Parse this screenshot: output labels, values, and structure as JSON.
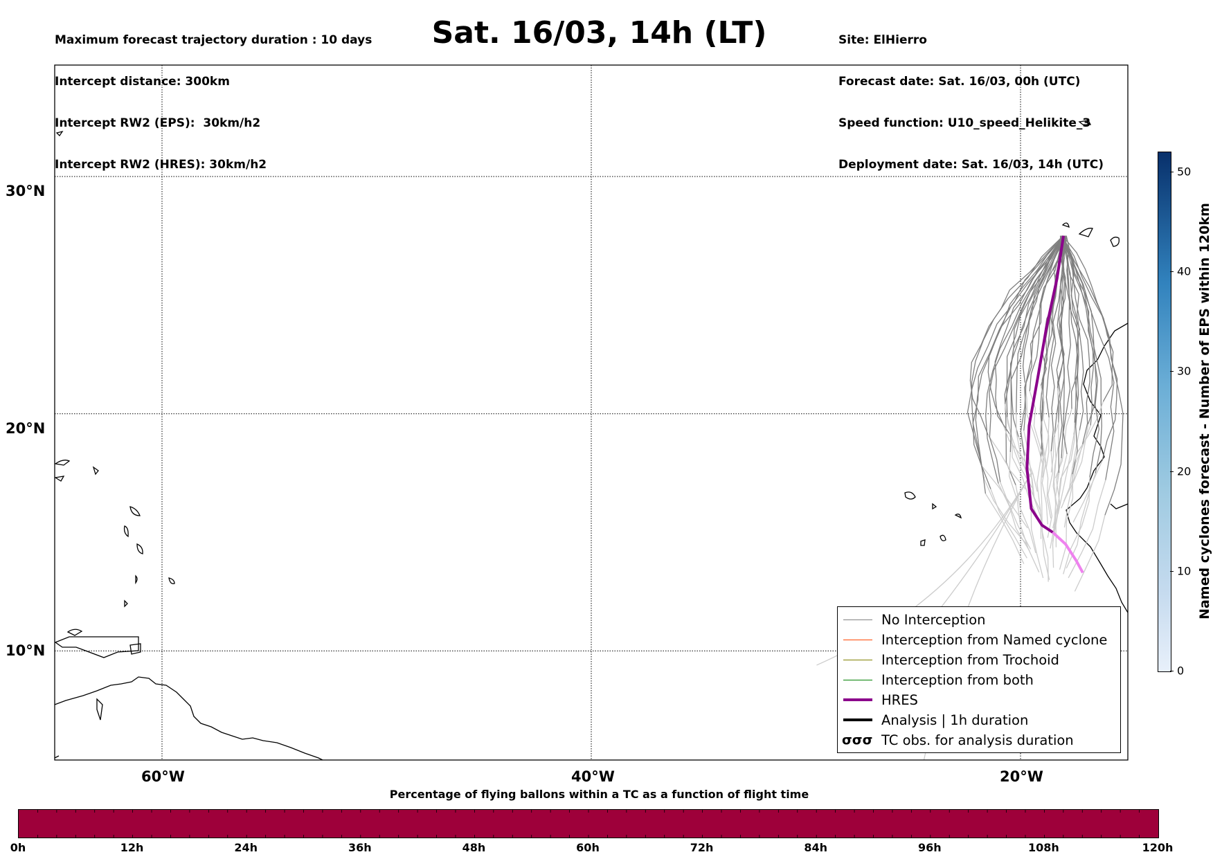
{
  "header": {
    "left_lines": [
      "Maximum forecast trajectory duration : 10 days",
      "Intercept distance: 300km",
      "Intercept RW2 (EPS):  30km/h2",
      "Intercept RW2 (HRES): 30km/h2"
    ],
    "title": "Sat. 16/03, 14h (LT)",
    "right_lines": [
      "Site: ElHierro",
      "Forecast date: Sat. 16/03, 00h (UTC)",
      "Speed function: U10_speed_Helikite_3",
      "Deployment date: Sat. 16/03, 14h (UTC)"
    ]
  },
  "map": {
    "lat_labels": [
      "30°N",
      "20°N",
      "10°N"
    ],
    "lon_labels": [
      "60°W",
      "40°W",
      "20°W"
    ],
    "lat_range": [
      5.4,
      34.7
    ],
    "lon_range": [
      -65,
      -15
    ],
    "site": {
      "lon": -18.0,
      "lat": 27.5
    },
    "hres_track": [
      [
        -18.0,
        27.5
      ],
      [
        -18.3,
        25.7
      ],
      [
        -18.8,
        23.6
      ],
      [
        -19.2,
        21.5
      ],
      [
        -19.6,
        19.5
      ],
      [
        -19.7,
        17.7
      ],
      [
        -19.5,
        16.0
      ],
      [
        -19.0,
        15.3
      ],
      [
        -18.5,
        15.0
      ],
      [
        -17.9,
        14.5
      ],
      [
        -17.4,
        13.8
      ],
      [
        -17.1,
        13.3
      ]
    ],
    "hres_split_index": 8,
    "colors": {
      "hres": "#8b008b",
      "hres_late": "#ee82ee",
      "no_interception": "#7f7f7f",
      "late_track": "#cccccc",
      "land": "#000000"
    }
  },
  "legend": {
    "items": [
      {
        "label": "No Interception",
        "color": "#7f7f7f",
        "style": "thin"
      },
      {
        "label": "Interception from Named cyclone",
        "color": "#ff4500",
        "style": "thin"
      },
      {
        "label": "Interception from Trochoid",
        "color": "#808000",
        "style": "thin"
      },
      {
        "label": "Interception from both",
        "color": "#008000",
        "style": "thin"
      },
      {
        "label": "HRES",
        "color": "#8b008b",
        "style": "thick"
      },
      {
        "label": "Analysis | 1h duration",
        "color": "#000000",
        "style": "thick"
      },
      {
        "label": "TC obs. for analysis duration",
        "color": "#000000",
        "style": "symbol"
      }
    ]
  },
  "time_bar": {
    "title": "Percentage of flying ballons within a TC as a function of flight time",
    "ticks": [
      "0h",
      "12h",
      "24h",
      "36h",
      "48h",
      "60h",
      "72h",
      "84h",
      "96h",
      "108h",
      "120h"
    ],
    "color": "#9e003a"
  },
  "colorbar": {
    "label": "Named cyclones forecast - Number of EPS within 120km",
    "ticks": [
      0,
      10,
      20,
      30,
      40,
      50
    ],
    "max": 52
  }
}
